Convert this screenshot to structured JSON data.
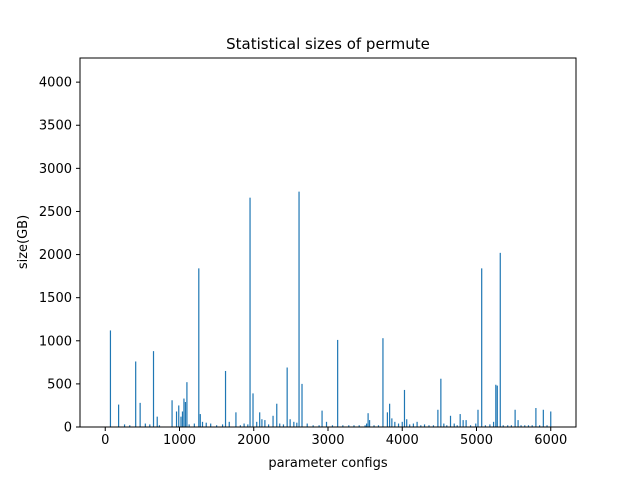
{
  "chart_data": {
    "type": "bar",
    "title": "Statistical sizes  of permute",
    "xlabel": "parameter configs",
    "ylabel": "size(GB)",
    "xlim": [
      -340,
      6340
    ],
    "ylim": [
      0,
      4280
    ],
    "xticks": [
      0,
      1000,
      2000,
      3000,
      4000,
      5000,
      6000
    ],
    "yticks": [
      0,
      500,
      1000,
      1500,
      2000,
      2500,
      3000,
      3500,
      4000
    ],
    "grid": false,
    "bar_color": "#1f77b4",
    "series": [
      {
        "x": [
          70,
          180,
          260,
          330,
          410,
          470,
          540,
          600,
          650,
          700,
          730,
          900,
          960,
          990,
          1020,
          1040,
          1060,
          1080,
          1100,
          1130,
          1200,
          1260,
          1280,
          1310,
          1360,
          1420,
          1500,
          1580,
          1620,
          1670,
          1760,
          1820,
          1870,
          1920,
          1950,
          1990,
          2040,
          2080,
          2110,
          2150,
          2200,
          2260,
          2310,
          2350,
          2400,
          2450,
          2490,
          2540,
          2580,
          2610,
          2650,
          2720,
          2800,
          2880,
          2920,
          2980,
          3060,
          3130,
          3200,
          3280,
          3350,
          3420,
          3500,
          3520,
          3540,
          3560,
          3620,
          3680,
          3740,
          3800,
          3830,
          3860,
          3900,
          3950,
          4000,
          4030,
          4060,
          4100,
          4150,
          4200,
          4250,
          4300,
          4360,
          4420,
          4480,
          4520,
          4560,
          4600,
          4650,
          4700,
          4740,
          4780,
          4820,
          4860,
          4920,
          4990,
          5020,
          5070,
          5120,
          5180,
          5230,
          5260,
          5280,
          5320,
          5360,
          5420,
          5470,
          5520,
          5560,
          5600,
          5650,
          5700,
          5750,
          5800,
          5850,
          5900,
          5950,
          6000
        ],
        "values": [
          1120,
          260,
          30,
          20,
          760,
          280,
          40,
          30,
          880,
          120,
          20,
          310,
          180,
          250,
          120,
          180,
          330,
          290,
          520,
          30,
          40,
          1840,
          150,
          60,
          50,
          40,
          20,
          30,
          650,
          60,
          170,
          20,
          40,
          30,
          2660,
          390,
          60,
          170,
          90,
          80,
          30,
          130,
          270,
          40,
          30,
          690,
          90,
          60,
          50,
          2730,
          500,
          40,
          20,
          20,
          190,
          60,
          20,
          1010,
          20,
          20,
          20,
          20,
          20,
          40,
          160,
          80,
          20,
          20,
          1030,
          170,
          270,
          100,
          60,
          40,
          60,
          430,
          90,
          30,
          40,
          60,
          20,
          30,
          20,
          20,
          200,
          560,
          40,
          20,
          130,
          40,
          20,
          150,
          80,
          80,
          20,
          40,
          200,
          1840,
          20,
          30,
          60,
          490,
          480,
          2020,
          20,
          20,
          20,
          200,
          80,
          20,
          20,
          20,
          20,
          220,
          20,
          200,
          20,
          180
        ]
      }
    ]
  }
}
